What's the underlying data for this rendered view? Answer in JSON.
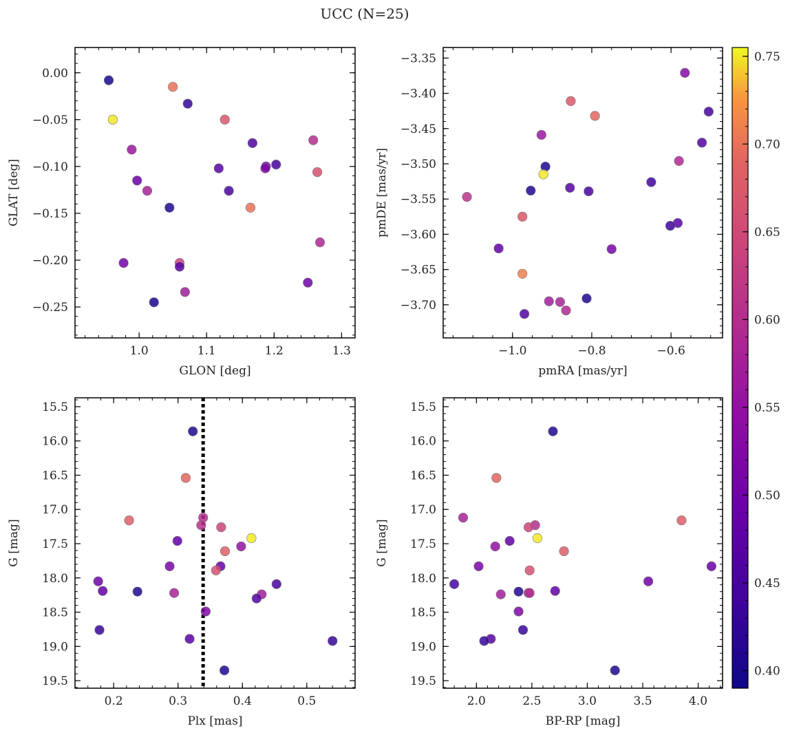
{
  "figure": {
    "title": "UCC (N=25)"
  },
  "colorbar": {
    "ticks": [
      0.4,
      0.45,
      0.5,
      0.55,
      0.6,
      0.65,
      0.7,
      0.75
    ],
    "tick_labels": [
      "0.40",
      "0.45",
      "0.50",
      "0.55",
      "0.60",
      "0.65",
      "0.70",
      "0.75"
    ],
    "range": [
      0.39,
      0.755
    ],
    "colormap": "plasma"
  },
  "chart_data": [
    {
      "type": "scatter",
      "name": "glon-glat",
      "xlabel": "GLON [deg]",
      "ylabel": "GLAT [deg]",
      "xlim": [
        0.905,
        1.32
      ],
      "ylim": [
        -0.283,
        0.027
      ],
      "y_inverted": false,
      "xticks": [
        1.0,
        1.1,
        1.2,
        1.3
      ],
      "xtick_labels": [
        "1.0",
        "1.1",
        "1.2",
        "1.3"
      ],
      "yticks": [
        0.0,
        -0.05,
        -0.1,
        -0.15,
        -0.2,
        -0.25
      ],
      "ytick_labels": [
        "0.00",
        "−0.05",
        "−0.10",
        "−0.15",
        "−0.20",
        "−0.25"
      ],
      "grid": false,
      "points": [
        {
          "x": 0.955,
          "y": -0.008,
          "c": 0.4
        },
        {
          "x": 1.05,
          "y": -0.015,
          "c": 0.7
        },
        {
          "x": 1.072,
          "y": -0.033,
          "c": 0.43
        },
        {
          "x": 0.961,
          "y": -0.05,
          "c": 0.75
        },
        {
          "x": 1.127,
          "y": -0.05,
          "c": 0.67
        },
        {
          "x": 1.258,
          "y": -0.072,
          "c": 0.6
        },
        {
          "x": 1.168,
          "y": -0.075,
          "c": 0.46
        },
        {
          "x": 0.989,
          "y": -0.082,
          "c": 0.56
        },
        {
          "x": 1.118,
          "y": -0.102,
          "c": 0.47
        },
        {
          "x": 1.188,
          "y": -0.1,
          "c": 0.5
        },
        {
          "x": 1.203,
          "y": -0.098,
          "c": 0.45
        },
        {
          "x": 1.264,
          "y": -0.106,
          "c": 0.66
        },
        {
          "x": 0.997,
          "y": -0.115,
          "c": 0.49
        },
        {
          "x": 1.012,
          "y": -0.126,
          "c": 0.58
        },
        {
          "x": 1.133,
          "y": -0.126,
          "c": 0.45
        },
        {
          "x": 1.045,
          "y": -0.144,
          "c": 0.41
        },
        {
          "x": 1.165,
          "y": -0.144,
          "c": 0.7
        },
        {
          "x": 1.268,
          "y": -0.181,
          "c": 0.59
        },
        {
          "x": 0.977,
          "y": -0.203,
          "c": 0.5
        },
        {
          "x": 1.06,
          "y": -0.203,
          "c": 0.64
        },
        {
          "x": 1.06,
          "y": -0.207,
          "c": 0.47
        },
        {
          "x": 1.25,
          "y": -0.224,
          "c": 0.5
        },
        {
          "x": 1.068,
          "y": -0.234,
          "c": 0.57
        },
        {
          "x": 1.022,
          "y": -0.245,
          "c": 0.4
        },
        {
          "x": 1.187,
          "y": -0.102,
          "c": 0.52
        }
      ]
    },
    {
      "type": "scatter",
      "name": "pmra-pmde",
      "xlabel": "pmRA [mas/yr]",
      "ylabel": "pmDE [mas/yr]",
      "xlim": [
        -1.175,
        -0.47
      ],
      "ylim": [
        -3.747,
        -3.335
      ],
      "y_inverted": false,
      "xticks": [
        -1.0,
        -0.8,
        -0.6
      ],
      "xtick_labels": [
        "−1.0",
        "−0.8",
        "−0.6"
      ],
      "yticks": [
        -3.35,
        -3.4,
        -3.45,
        -3.5,
        -3.55,
        -3.6,
        -3.65,
        -3.7
      ],
      "ytick_labels": [
        "−3.35",
        "−3.40",
        "−3.45",
        "−3.50",
        "−3.55",
        "−3.60",
        "−3.65",
        "−3.70"
      ],
      "grid": false,
      "points": [
        {
          "x": -0.565,
          "y": -3.371,
          "c": 0.53
        },
        {
          "x": -0.853,
          "y": -3.411,
          "c": 0.67
        },
        {
          "x": -0.505,
          "y": -3.426,
          "c": 0.45
        },
        {
          "x": -0.792,
          "y": -3.432,
          "c": 0.69
        },
        {
          "x": -0.927,
          "y": -3.459,
          "c": 0.56
        },
        {
          "x": -0.522,
          "y": -3.47,
          "c": 0.46
        },
        {
          "x": -0.58,
          "y": -3.496,
          "c": 0.59
        },
        {
          "x": -0.917,
          "y": -3.504,
          "c": 0.41
        },
        {
          "x": -0.922,
          "y": -3.515,
          "c": 0.75
        },
        {
          "x": -0.65,
          "y": -3.526,
          "c": 0.44
        },
        {
          "x": -0.855,
          "y": -3.534,
          "c": 0.47
        },
        {
          "x": -0.954,
          "y": -3.538,
          "c": 0.41
        },
        {
          "x": -0.808,
          "y": -3.539,
          "c": 0.45
        },
        {
          "x": -1.115,
          "y": -3.547,
          "c": 0.61
        },
        {
          "x": -0.975,
          "y": -3.575,
          "c": 0.67
        },
        {
          "x": -0.583,
          "y": -3.584,
          "c": 0.47
        },
        {
          "x": -0.602,
          "y": -3.588,
          "c": 0.44
        },
        {
          "x": -1.035,
          "y": -3.62,
          "c": 0.48
        },
        {
          "x": -0.75,
          "y": -3.621,
          "c": 0.51
        },
        {
          "x": -0.975,
          "y": -3.656,
          "c": 0.71
        },
        {
          "x": -0.813,
          "y": -3.691,
          "c": 0.41
        },
        {
          "x": -0.908,
          "y": -3.695,
          "c": 0.57
        },
        {
          "x": -0.88,
          "y": -3.696,
          "c": 0.58
        },
        {
          "x": -0.865,
          "y": -3.708,
          "c": 0.59
        },
        {
          "x": -0.97,
          "y": -3.713,
          "c": 0.46
        }
      ]
    },
    {
      "type": "scatter",
      "name": "plx-g",
      "xlabel": "Plx [mas]",
      "ylabel": "G [mag]",
      "xlim": [
        0.14,
        0.575
      ],
      "ylim": [
        15.37,
        19.61
      ],
      "y_inverted": true,
      "xticks": [
        0.2,
        0.3,
        0.4,
        0.5
      ],
      "xtick_labels": [
        "0.2",
        "0.3",
        "0.4",
        "0.5"
      ],
      "yticks": [
        15.5,
        16.0,
        16.5,
        17.0,
        17.5,
        18.0,
        18.5,
        19.0,
        19.5
      ],
      "ytick_labels": [
        "15.5",
        "16.0",
        "16.5",
        "17.0",
        "17.5",
        "18.0",
        "18.5",
        "19.0",
        "19.5"
      ],
      "grid": false,
      "vline": {
        "x": 0.339,
        "style": "dotted"
      },
      "points": [
        {
          "x": 0.323,
          "y": 15.86,
          "c": 0.41
        },
        {
          "x": 0.312,
          "y": 16.54,
          "c": 0.69
        },
        {
          "x": 0.224,
          "y": 17.16,
          "c": 0.68
        },
        {
          "x": 0.339,
          "y": 17.12,
          "c": 0.6
        },
        {
          "x": 0.336,
          "y": 17.23,
          "c": 0.61
        },
        {
          "x": 0.367,
          "y": 17.26,
          "c": 0.64
        },
        {
          "x": 0.414,
          "y": 17.42,
          "c": 0.75
        },
        {
          "x": 0.299,
          "y": 17.46,
          "c": 0.48
        },
        {
          "x": 0.398,
          "y": 17.54,
          "c": 0.55
        },
        {
          "x": 0.373,
          "y": 17.61,
          "c": 0.68
        },
        {
          "x": 0.287,
          "y": 17.83,
          "c": 0.51
        },
        {
          "x": 0.366,
          "y": 17.83,
          "c": 0.49
        },
        {
          "x": 0.359,
          "y": 17.89,
          "c": 0.66
        },
        {
          "x": 0.176,
          "y": 18.05,
          "c": 0.5
        },
        {
          "x": 0.453,
          "y": 18.09,
          "c": 0.45
        },
        {
          "x": 0.183,
          "y": 18.19,
          "c": 0.48
        },
        {
          "x": 0.237,
          "y": 18.2,
          "c": 0.41
        },
        {
          "x": 0.294,
          "y": 18.22,
          "c": 0.58
        },
        {
          "x": 0.43,
          "y": 18.24,
          "c": 0.57
        },
        {
          "x": 0.422,
          "y": 18.3,
          "c": 0.46
        },
        {
          "x": 0.343,
          "y": 18.49,
          "c": 0.52
        },
        {
          "x": 0.178,
          "y": 18.76,
          "c": 0.43
        },
        {
          "x": 0.318,
          "y": 18.89,
          "c": 0.47
        },
        {
          "x": 0.54,
          "y": 18.92,
          "c": 0.43
        },
        {
          "x": 0.372,
          "y": 19.35,
          "c": 0.41
        }
      ]
    },
    {
      "type": "scatter",
      "name": "bprp-g",
      "xlabel": "BP-RP [mag]",
      "ylabel": "G [mag]",
      "xlim": [
        1.7,
        4.22
      ],
      "ylim": [
        15.37,
        19.61
      ],
      "y_inverted": true,
      "xticks": [
        2.0,
        2.5,
        3.0,
        3.5,
        4.0
      ],
      "xtick_labels": [
        "2.0",
        "2.5",
        "3.0",
        "3.5",
        "4.0"
      ],
      "yticks": [
        15.5,
        16.0,
        16.5,
        17.0,
        17.5,
        18.0,
        18.5,
        19.0,
        19.5
      ],
      "ytick_labels": [
        "15.5",
        "16.0",
        "16.5",
        "17.0",
        "17.5",
        "18.0",
        "18.5",
        "19.0",
        "19.5"
      ],
      "grid": false,
      "points": [
        {
          "x": 2.69,
          "y": 15.86,
          "c": 0.41
        },
        {
          "x": 2.18,
          "y": 16.54,
          "c": 0.69
        },
        {
          "x": 1.88,
          "y": 17.12,
          "c": 0.58
        },
        {
          "x": 3.85,
          "y": 17.16,
          "c": 0.68
        },
        {
          "x": 2.53,
          "y": 17.23,
          "c": 0.6
        },
        {
          "x": 2.47,
          "y": 17.26,
          "c": 0.64
        },
        {
          "x": 2.55,
          "y": 17.42,
          "c": 0.75
        },
        {
          "x": 2.3,
          "y": 17.46,
          "c": 0.48
        },
        {
          "x": 2.17,
          "y": 17.54,
          "c": 0.55
        },
        {
          "x": 2.79,
          "y": 17.61,
          "c": 0.68
        },
        {
          "x": 2.02,
          "y": 17.83,
          "c": 0.51
        },
        {
          "x": 4.12,
          "y": 17.83,
          "c": 0.49
        },
        {
          "x": 2.48,
          "y": 17.89,
          "c": 0.66
        },
        {
          "x": 3.55,
          "y": 18.05,
          "c": 0.5
        },
        {
          "x": 1.8,
          "y": 18.09,
          "c": 0.45
        },
        {
          "x": 2.71,
          "y": 18.19,
          "c": 0.48
        },
        {
          "x": 2.38,
          "y": 18.2,
          "c": 0.41
        },
        {
          "x": 2.47,
          "y": 18.22,
          "c": 0.58
        },
        {
          "x": 2.22,
          "y": 18.24,
          "c": 0.57
        },
        {
          "x": 2.38,
          "y": 18.49,
          "c": 0.52
        },
        {
          "x": 2.42,
          "y": 18.76,
          "c": 0.43
        },
        {
          "x": 2.13,
          "y": 18.89,
          "c": 0.47
        },
        {
          "x": 2.07,
          "y": 18.92,
          "c": 0.43
        },
        {
          "x": 3.25,
          "y": 19.35,
          "c": 0.41
        },
        {
          "x": 2.48,
          "y": 18.22,
          "c": 0.6
        }
      ]
    }
  ]
}
